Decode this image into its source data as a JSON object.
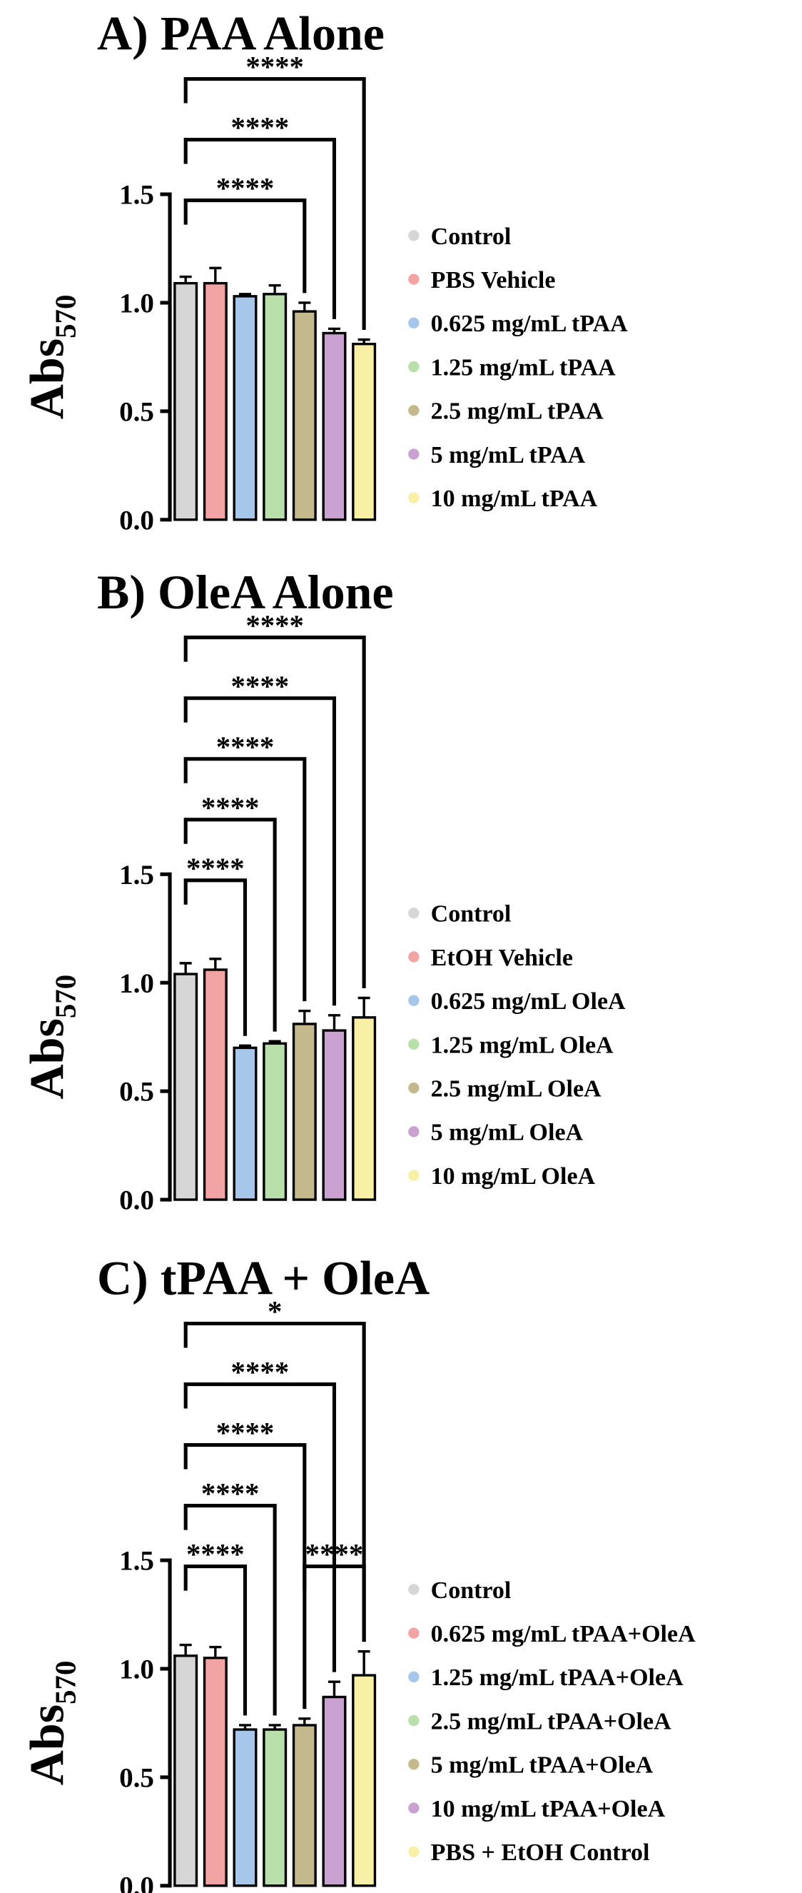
{
  "chart_data": [
    {
      "type": "bar",
      "title": "A)  PAA Alone",
      "y_label": "Abs",
      "y_label_sub": "570",
      "categories": [
        "Control",
        "PBS Vehicle",
        "0.625 mg/mL tPAA",
        "1.25 mg/mL tPAA",
        "2.5 mg/mL tPAA",
        "5 mg/mL tPAA",
        "10 mg/mL tPAA"
      ],
      "values": [
        1.09,
        1.09,
        1.03,
        1.04,
        0.96,
        0.86,
        0.81
      ],
      "errors": [
        0.03,
        0.07,
        0.01,
        0.04,
        0.04,
        0.02,
        0.02
      ],
      "colors": [
        "#d6d6d6",
        "#f2a3a3",
        "#a7c7ea",
        "#b9dfaa",
        "#c4b98c",
        "#c9a2d1",
        "#f7f0a6"
      ],
      "ylim": [
        0,
        1.5
      ],
      "yticks": [
        {
          "value": 0,
          "label": "0.0"
        },
        {
          "value": 0.5,
          "label": "0.5"
        },
        {
          "value": 1,
          "label": "1.0"
        },
        {
          "value": 1.5,
          "label": "1.5"
        }
      ],
      "significance": [
        {
          "from": 0,
          "to": 4,
          "label": "****"
        },
        {
          "from": 0,
          "to": 5,
          "label": "****"
        },
        {
          "from": 0,
          "to": 6,
          "label": "****"
        }
      ]
    },
    {
      "type": "bar",
      "title": "B) OleA Alone",
      "y_label": "Abs",
      "y_label_sub": "570",
      "categories": [
        "Control",
        "EtOH Vehicle",
        "0.625 mg/mL OleA",
        "1.25 mg/mL OleA",
        "2.5 mg/mL OleA",
        "5 mg/mL OleA",
        "10 mg/mL OleA"
      ],
      "values": [
        1.04,
        1.06,
        0.7,
        0.72,
        0.81,
        0.78,
        0.84
      ],
      "errors": [
        0.05,
        0.05,
        0.01,
        0.01,
        0.06,
        0.07,
        0.09
      ],
      "colors": [
        "#d6d6d6",
        "#f2a3a3",
        "#a7c7ea",
        "#b9dfaa",
        "#c4b98c",
        "#c9a2d1",
        "#f7f0a6"
      ],
      "ylim": [
        0,
        1.5
      ],
      "yticks": [
        {
          "value": 0,
          "label": "0.0"
        },
        {
          "value": 0.5,
          "label": "0.5"
        },
        {
          "value": 1,
          "label": "1.0"
        },
        {
          "value": 1.5,
          "label": "1.5"
        }
      ],
      "significance": [
        {
          "from": 0,
          "to": 2,
          "label": "****"
        },
        {
          "from": 0,
          "to": 3,
          "label": "****"
        },
        {
          "from": 0,
          "to": 4,
          "label": "****"
        },
        {
          "from": 0,
          "to": 5,
          "label": "****"
        },
        {
          "from": 0,
          "to": 6,
          "label": "****"
        }
      ]
    },
    {
      "type": "bar",
      "title": "C) tPAA + OleA",
      "y_label": "Abs",
      "y_label_sub": "570",
      "categories": [
        "Control",
        "0.625 mg/mL tPAA+OleA",
        "1.25 mg/mL tPAA+OleA",
        "2.5 mg/mL tPAA+OleA",
        "5 mg/mL tPAA+OleA",
        "10 mg/mL tPAA+OleA",
        "PBS + EtOH Control"
      ],
      "values": [
        1.06,
        1.05,
        0.72,
        0.72,
        0.74,
        0.87,
        0.97
      ],
      "errors": [
        0.05,
        0.05,
        0.02,
        0.02,
        0.03,
        0.07,
        0.11
      ],
      "colors": [
        "#d6d6d6",
        "#f2a3a3",
        "#a7c7ea",
        "#b9dfaa",
        "#c4b98c",
        "#c9a2d1",
        "#f7f0a6"
      ],
      "ylim": [
        0,
        1.5
      ],
      "yticks": [
        {
          "value": 0,
          "label": "0.0"
        },
        {
          "value": 0.5,
          "label": "0.5"
        },
        {
          "value": 1,
          "label": "1.0"
        },
        {
          "value": 1.5,
          "label": "1.5"
        }
      ],
      "significance": [
        {
          "from": 0,
          "to": 2,
          "label": "****"
        },
        {
          "from": 4,
          "to": 6,
          "label": "****"
        },
        {
          "from": 0,
          "to": 3,
          "label": "****"
        },
        {
          "from": 0,
          "to": 4,
          "label": "****"
        },
        {
          "from": 0,
          "to": 5,
          "label": "****"
        },
        {
          "from": 0,
          "to": 6,
          "label": "*"
        }
      ]
    }
  ]
}
